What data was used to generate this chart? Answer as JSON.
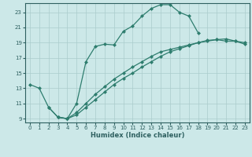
{
  "xlabel": "Humidex (Indice chaleur)",
  "ylabel": "",
  "bg_color": "#cce8e8",
  "line_color": "#2e7d6e",
  "grid_color": "#aacccc",
  "xlim": [
    -0.5,
    23.5
  ],
  "ylim": [
    8.5,
    24.2
  ],
  "xticks": [
    0,
    1,
    2,
    3,
    4,
    5,
    6,
    7,
    8,
    9,
    10,
    11,
    12,
    13,
    14,
    15,
    16,
    17,
    18,
    19,
    20,
    21,
    22,
    23
  ],
  "yticks": [
    9,
    11,
    13,
    15,
    17,
    19,
    21,
    23
  ],
  "line1_x": [
    0,
    1,
    2,
    3,
    4,
    5,
    6,
    7,
    8,
    9,
    10,
    11,
    12,
    13,
    14,
    15,
    16,
    17,
    18
  ],
  "line1_y": [
    13.5,
    13.0,
    10.5,
    9.2,
    9.0,
    11.0,
    16.5,
    18.5,
    18.8,
    18.7,
    20.5,
    21.2,
    22.5,
    23.5,
    24.0,
    24.0,
    23.0,
    22.5,
    20.3
  ],
  "line2_x": [
    2,
    3,
    4,
    5,
    6,
    7,
    8,
    9,
    10,
    11,
    12,
    13,
    14,
    15,
    16,
    17,
    18,
    19,
    20,
    21,
    22,
    23
  ],
  "line2_y": [
    10.5,
    9.2,
    9.0,
    9.5,
    10.5,
    11.5,
    12.5,
    13.5,
    14.3,
    15.0,
    15.8,
    16.5,
    17.2,
    17.8,
    18.2,
    18.6,
    19.0,
    19.3,
    19.4,
    19.2,
    19.2,
    18.8
  ],
  "line3_x": [
    3,
    4,
    5,
    6,
    7,
    8,
    9,
    10,
    11,
    12,
    13,
    14,
    15,
    16,
    17,
    18,
    19,
    20,
    21,
    22,
    23
  ],
  "line3_y": [
    9.2,
    9.0,
    9.8,
    11.0,
    12.2,
    13.2,
    14.2,
    15.0,
    15.8,
    16.5,
    17.2,
    17.8,
    18.1,
    18.4,
    18.7,
    19.0,
    19.2,
    19.4,
    19.5,
    19.2,
    19.0
  ]
}
